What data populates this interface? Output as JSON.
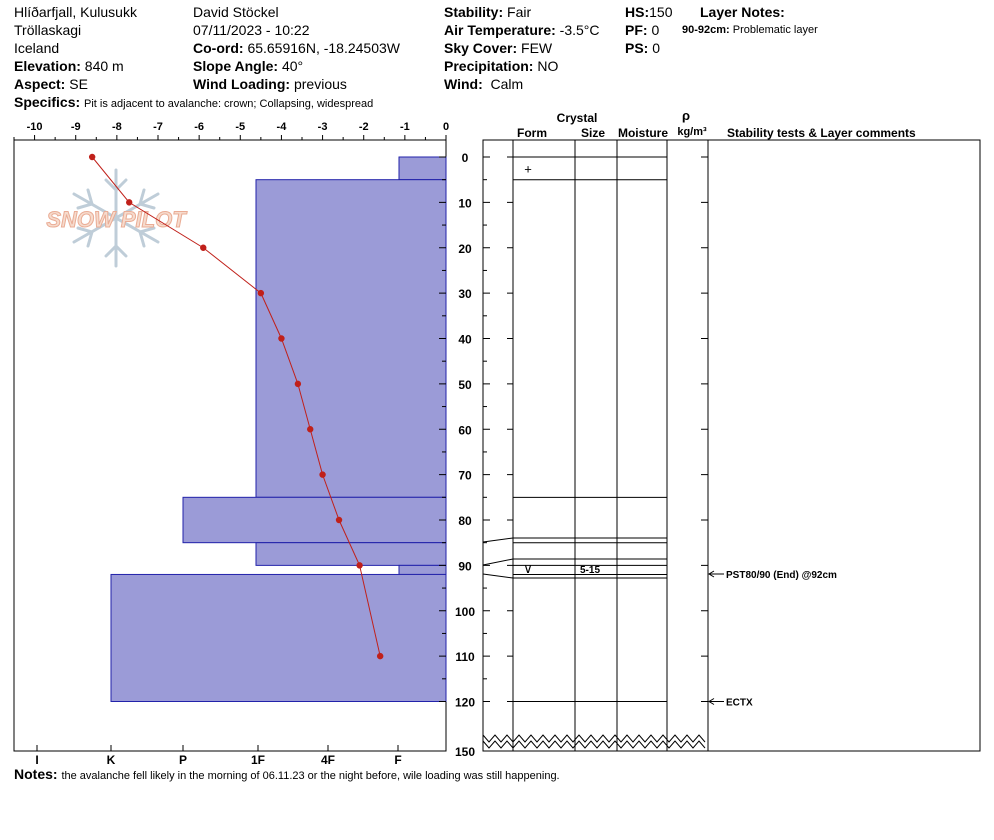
{
  "header": {
    "location": "Hlíðarfjall, Kulusukk",
    "region": "Tröllaskagi",
    "country": "Iceland",
    "elevation_label": "Elevation:",
    "elevation_value": "840 m",
    "aspect_label": "Aspect:",
    "aspect_value": "SE",
    "observer": "David Stöckel",
    "datetime": "07/11/2023 - 10:22",
    "coord_label": "Co-ord:",
    "coord_value": "65.65916N, -18.24503W",
    "slope_label": "Slope Angle:",
    "slope_value": "40°",
    "wind_loading_label": "Wind Loading:",
    "wind_loading_value": "previous",
    "stability_label": "Stability:",
    "stability_value": "Fair",
    "air_temp_label": "Air Temperature:",
    "air_temp_value": "-3.5°C",
    "sky_label": "Sky Cover:",
    "sky_value": "FEW",
    "precip_label": "Precipitation:",
    "precip_value": "NO",
    "wind_label": "Wind:",
    "wind_value": "Calm",
    "hs_label": "HS:",
    "hs_value": "150",
    "pf_label": "PF:",
    "pf_value": "0",
    "ps_label": "PS:",
    "ps_value": "0",
    "layer_notes_label": "Layer Notes:",
    "layer_note_depth": "90-92cm:",
    "layer_note_text": "Problematic layer",
    "specifics_label": "Specifics:",
    "specifics_value": "Pit is adjacent to avalanche: crown; Collapsing, widespread",
    "notes_label": "Notes:",
    "notes_value": "the avalanche fell likely in the morning of 06.11.23 or the night before, wile loading was still happening."
  },
  "columns": {
    "crystal": "Crystal",
    "form": "Form",
    "size": "Size",
    "moisture": "Moisture",
    "density_symbol": "ρ",
    "density_unit": "kg/m³",
    "stability": "Stability tests & Layer comments"
  },
  "watermark": "SNOW PILOT",
  "chart_data": {
    "type": "line",
    "temperature_axis": {
      "ticks": [
        -10,
        -9,
        -8,
        -7,
        -6,
        -5,
        -4,
        -3,
        -2,
        -1,
        0
      ],
      "range": [
        -10.5,
        0
      ]
    },
    "depth_axis": {
      "ticks": [
        0,
        10,
        20,
        30,
        40,
        50,
        60,
        70,
        80,
        90,
        100,
        110,
        120,
        150
      ],
      "range": [
        0,
        150
      ],
      "direction": "down"
    },
    "hardness_axis": {
      "labels": [
        "I",
        "K",
        "P",
        "1F",
        "4F",
        "F"
      ],
      "scale": "hand hardness, F on the right"
    },
    "hardness_layers": [
      {
        "top": 0,
        "bottom": 5,
        "hardness": "F"
      },
      {
        "top": 5,
        "bottom": 75,
        "hardness": "1F"
      },
      {
        "top": 75,
        "bottom": 85,
        "hardness": "P"
      },
      {
        "top": 85,
        "bottom": 90,
        "hardness": "1F"
      },
      {
        "top": 90,
        "bottom": 92,
        "hardness": "F"
      },
      {
        "top": 92,
        "bottom": 120,
        "hardness": "K"
      }
    ],
    "temperature_profile": [
      {
        "depth": 0,
        "temp": -8.6
      },
      {
        "depth": 10,
        "temp": -7.7
      },
      {
        "depth": 20,
        "temp": -5.9
      },
      {
        "depth": 30,
        "temp": -4.5
      },
      {
        "depth": 40,
        "temp": -4.0
      },
      {
        "depth": 50,
        "temp": -3.6
      },
      {
        "depth": 60,
        "temp": -3.3
      },
      {
        "depth": 70,
        "temp": -3.0
      },
      {
        "depth": 80,
        "temp": -2.6
      },
      {
        "depth": 90,
        "temp": -2.1
      },
      {
        "depth": 110,
        "temp": -1.6
      }
    ],
    "layer_boundaries": [
      0,
      5,
      75,
      85,
      90,
      92,
      120
    ],
    "crystal_layers": [
      {
        "top": 0,
        "bottom": 5,
        "form_symbol": "+",
        "size": ""
      },
      {
        "top": 90,
        "bottom": 92,
        "form_symbol": "∨",
        "size": "5-15"
      }
    ],
    "stability_tests": [
      {
        "depth": 92,
        "label": "PST80/90 (End) @92cm"
      },
      {
        "depth": 120,
        "label": "ECTX"
      }
    ]
  }
}
